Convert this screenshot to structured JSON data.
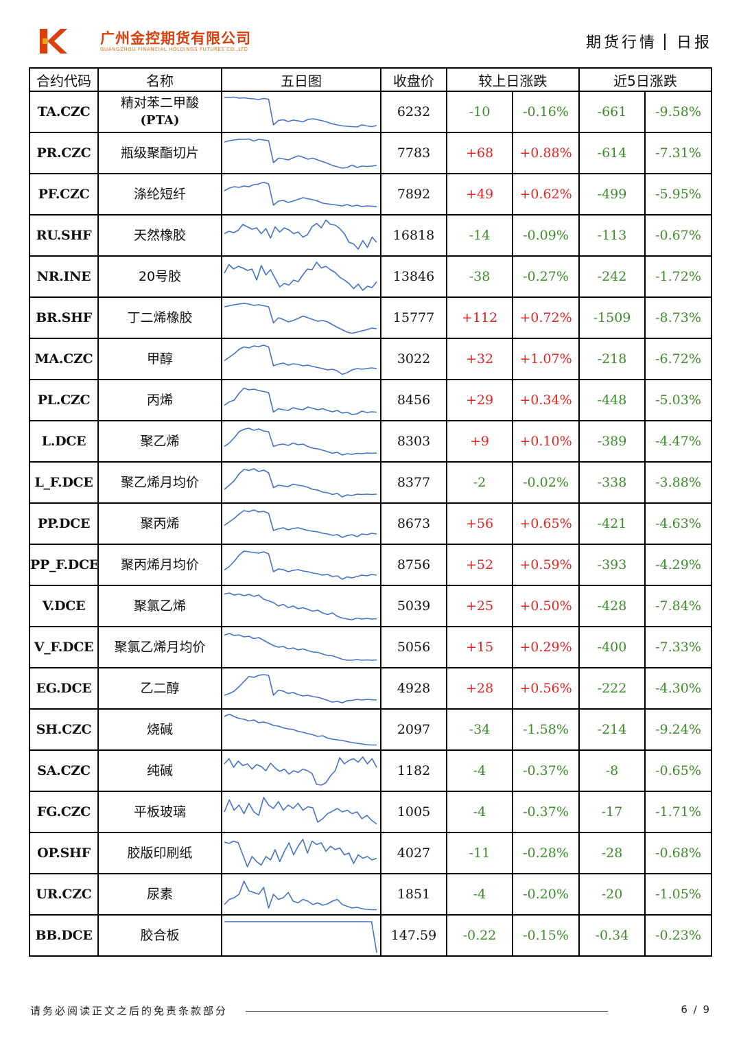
{
  "header": {
    "company_cn": "广州金控期货有限公司",
    "company_en": "GUANGZHOU FINANCIAL HOLDINGS FUTURES CO.,LTD",
    "report_type": "期货行情",
    "report_freq": "日报"
  },
  "colors": {
    "brand": "#d8400e",
    "up": "#e8231f",
    "down": "#3b8c2a",
    "sparkline": "#4472c4"
  },
  "table": {
    "headers": [
      "合约代码",
      "名称",
      "五日图",
      "收盘价",
      "较上日涨跌",
      "近5日涨跌"
    ],
    "rows": [
      {
        "code": "TA.CZC",
        "name": "精对苯二甲酸",
        "name_sub": "(PTA)",
        "close": "6232",
        "chg": "-10",
        "chg_pct": "-0.16%",
        "chg5": "-661",
        "chg5_pct": "-9.58%",
        "trend": [
          0.92,
          0.92,
          0.93,
          0.9,
          0.91,
          0.89,
          0.88,
          0.86,
          0.89,
          0.87,
          0.12,
          0.25,
          0.27,
          0.22,
          0.26,
          0.24,
          0.21,
          0.28,
          0.3,
          0.27,
          0.24,
          0.2,
          0.15,
          0.12,
          0.09,
          0.08,
          0.07,
          0.06,
          0.12,
          0.09,
          0.07,
          0.1
        ]
      },
      {
        "code": "PR.CZC",
        "name": "瓶级聚酯切片",
        "name_sub": "",
        "close": "7783",
        "chg": "+68",
        "chg_pct": "+0.88%",
        "chg5": "-614",
        "chg5_pct": "-7.31%",
        "trend": [
          0.82,
          0.86,
          0.88,
          0.9,
          0.9,
          0.91,
          0.85,
          0.9,
          0.88,
          0.86,
          0.22,
          0.35,
          0.33,
          0.3,
          0.36,
          0.42,
          0.38,
          0.32,
          0.35,
          0.3,
          0.25,
          0.2,
          0.14,
          0.1,
          0.06,
          0.08,
          0.15,
          0.08,
          0.12,
          0.11,
          0.12,
          0.14
        ]
      },
      {
        "code": "PF.CZC",
        "name": "涤纶短纤",
        "name_sub": "",
        "close": "7892",
        "chg": "+49",
        "chg_pct": "+0.62%",
        "chg5": "-499",
        "chg5_pct": "-5.95%",
        "trend": [
          0.6,
          0.68,
          0.72,
          0.7,
          0.74,
          0.72,
          0.78,
          0.8,
          0.85,
          0.8,
          0.18,
          0.3,
          0.32,
          0.26,
          0.3,
          0.35,
          0.4,
          0.37,
          0.34,
          0.3,
          0.24,
          0.22,
          0.2,
          0.18,
          0.16,
          0.2,
          0.15,
          0.18,
          0.14,
          0.16,
          0.15,
          0.14
        ]
      },
      {
        "code": "RU.SHF",
        "name": "天然橡胶",
        "name_sub": "",
        "close": "16818",
        "chg": "-14",
        "chg_pct": "-0.09%",
        "chg5": "-113",
        "chg5_pct": "-0.67%",
        "trend": [
          0.55,
          0.62,
          0.58,
          0.65,
          0.82,
          0.75,
          0.68,
          0.72,
          0.55,
          0.7,
          0.42,
          0.75,
          0.6,
          0.72,
          0.66,
          0.55,
          0.6,
          0.45,
          0.52,
          0.75,
          0.85,
          0.72,
          0.95,
          0.82,
          0.8,
          0.7,
          0.55,
          0.3,
          0.25,
          0.1,
          0.35,
          0.15,
          0.45,
          0.3
        ]
      },
      {
        "code": "NR.INE",
        "name": "20号胶",
        "name_sub": "",
        "close": "13846",
        "chg": "-38",
        "chg_pct": "-0.27%",
        "chg5": "-242",
        "chg5_pct": "-1.72%",
        "trend": [
          0.6,
          0.85,
          0.72,
          0.8,
          0.75,
          0.68,
          0.72,
          0.4,
          0.82,
          0.55,
          0.7,
          0.45,
          0.2,
          0.3,
          0.25,
          0.4,
          0.35,
          0.55,
          0.72,
          0.7,
          0.92,
          0.75,
          0.8,
          0.7,
          0.62,
          0.48,
          0.4,
          0.3,
          0.15,
          0.28,
          0.1,
          0.22,
          0.18,
          0.35
        ]
      },
      {
        "code": "BR.SHF",
        "name": "丁二烯橡胶",
        "name_sub": "",
        "close": "15777",
        "chg": "+112",
        "chg_pct": "+0.72%",
        "chg5": "-1509",
        "chg5_pct": "-8.73%",
        "trend": [
          0.82,
          0.85,
          0.88,
          0.9,
          0.92,
          0.9,
          0.86,
          0.88,
          0.85,
          0.82,
          0.35,
          0.5,
          0.45,
          0.38,
          0.42,
          0.48,
          0.55,
          0.5,
          0.45,
          0.4,
          0.42,
          0.38,
          0.3,
          0.22,
          0.15,
          0.08,
          0.05,
          0.08,
          0.12,
          0.15,
          0.2,
          0.18
        ]
      },
      {
        "code": "MA.CZC",
        "name": "甲醇",
        "name_sub": "",
        "close": "3022",
        "chg": "+32",
        "chg_pct": "+1.07%",
        "chg5": "-218",
        "chg5_pct": "-6.72%",
        "trend": [
          0.45,
          0.55,
          0.65,
          0.78,
          0.85,
          0.82,
          0.88,
          0.86,
          0.9,
          0.85,
          0.3,
          0.35,
          0.38,
          0.32,
          0.36,
          0.34,
          0.3,
          0.32,
          0.28,
          0.25,
          0.22,
          0.18,
          0.2,
          0.15,
          0.05,
          0.1,
          0.18,
          0.22,
          0.2,
          0.22,
          0.24,
          0.22
        ]
      },
      {
        "code": "PL.CZC",
        "name": "丙烯",
        "name_sub": "",
        "close": "8456",
        "chg": "+29",
        "chg_pct": "+0.34%",
        "chg5": "-448",
        "chg5_pct": "-5.03%",
        "trend": [
          0.35,
          0.45,
          0.5,
          0.7,
          0.85,
          0.8,
          0.82,
          0.78,
          0.75,
          0.72,
          0.15,
          0.25,
          0.22,
          0.2,
          0.28,
          0.24,
          0.22,
          0.3,
          0.26,
          0.22,
          0.25,
          0.2,
          0.16,
          0.2,
          0.12,
          0.15,
          0.08,
          0.1,
          0.18,
          0.14,
          0.16,
          0.15
        ]
      },
      {
        "code": "L.DCE",
        "name": "聚乙烯",
        "name_sub": "",
        "close": "8303",
        "chg": "+9",
        "chg_pct": "+0.10%",
        "chg5": "-389",
        "chg5_pct": "-4.47%",
        "trend": [
          0.35,
          0.45,
          0.6,
          0.78,
          0.85,
          0.88,
          0.82,
          0.86,
          0.8,
          0.78,
          0.35,
          0.4,
          0.42,
          0.38,
          0.45,
          0.4,
          0.42,
          0.35,
          0.3,
          0.28,
          0.24,
          0.2,
          0.15,
          0.18,
          0.1,
          0.14,
          0.12,
          0.15,
          0.14,
          0.16,
          0.15,
          0.16
        ]
      },
      {
        "code": "L_F.DCE",
        "name": "聚乙烯月均价",
        "name_sub": "",
        "close": "8377",
        "chg": "-2",
        "chg_pct": "-0.02%",
        "chg5": "-338",
        "chg5_pct": "-3.88%",
        "trend": [
          0.3,
          0.42,
          0.55,
          0.75,
          0.88,
          0.85,
          0.9,
          0.82,
          0.86,
          0.78,
          0.35,
          0.42,
          0.4,
          0.38,
          0.45,
          0.42,
          0.4,
          0.36,
          0.3,
          0.28,
          0.22,
          0.2,
          0.15,
          0.18,
          0.08,
          0.14,
          0.12,
          0.16,
          0.15,
          0.16,
          0.15,
          0.16
        ]
      },
      {
        "code": "PP.DCE",
        "name": "聚丙烯",
        "name_sub": "",
        "close": "8673",
        "chg": "+56",
        "chg_pct": "+0.65%",
        "chg5": "-421",
        "chg5_pct": "-4.63%",
        "trend": [
          0.45,
          0.55,
          0.65,
          0.78,
          0.88,
          0.85,
          0.9,
          0.84,
          0.86,
          0.8,
          0.3,
          0.35,
          0.38,
          0.32,
          0.36,
          0.38,
          0.34,
          0.3,
          0.28,
          0.26,
          0.22,
          0.2,
          0.16,
          0.18,
          0.1,
          0.15,
          0.18,
          0.12,
          0.2,
          0.18,
          0.22,
          0.2
        ]
      },
      {
        "code": "PP_F.DCE",
        "name": "聚丙烯月均价",
        "name_sub": "",
        "close": "8756",
        "chg": "+52",
        "chg_pct": "+0.59%",
        "chg5": "-393",
        "chg5_pct": "-4.29%",
        "trend": [
          0.35,
          0.45,
          0.6,
          0.78,
          0.9,
          0.88,
          0.86,
          0.84,
          0.88,
          0.82,
          0.3,
          0.38,
          0.36,
          0.3,
          0.34,
          0.36,
          0.32,
          0.3,
          0.26,
          0.24,
          0.2,
          0.22,
          0.16,
          0.18,
          0.08,
          0.15,
          0.12,
          0.16,
          0.2,
          0.18,
          0.22,
          0.2
        ]
      },
      {
        "code": "V.DCE",
        "name": "聚氯乙烯",
        "name_sub": "",
        "close": "5039",
        "chg": "+25",
        "chg_pct": "+0.50%",
        "chg5": "-428",
        "chg5_pct": "-7.84%",
        "trend": [
          0.85,
          0.88,
          0.82,
          0.85,
          0.8,
          0.84,
          0.78,
          0.82,
          0.7,
          0.65,
          0.6,
          0.5,
          0.55,
          0.45,
          0.5,
          0.42,
          0.45,
          0.4,
          0.35,
          0.38,
          0.3,
          0.25,
          0.3,
          0.2,
          0.15,
          0.12,
          0.1,
          0.15,
          0.12,
          0.14,
          0.12,
          0.13
        ]
      },
      {
        "code": "V_F.DCE",
        "name": "聚氯乙烯月均价",
        "name_sub": "",
        "close": "5056",
        "chg": "+15",
        "chg_pct": "+0.29%",
        "chg5": "-400",
        "chg5_pct": "-7.33%",
        "trend": [
          0.85,
          0.9,
          0.84,
          0.86,
          0.8,
          0.82,
          0.75,
          0.78,
          0.7,
          0.62,
          0.55,
          0.5,
          0.52,
          0.45,
          0.48,
          0.42,
          0.45,
          0.4,
          0.36,
          0.35,
          0.3,
          0.26,
          0.25,
          0.2,
          0.15,
          0.12,
          0.12,
          0.14,
          0.12,
          0.13,
          0.12,
          0.13
        ]
      },
      {
        "code": "EG.DCE",
        "name": "乙二醇",
        "name_sub": "",
        "close": "4928",
        "chg": "+28",
        "chg_pct": "+0.56%",
        "chg5": "-222",
        "chg5_pct": "-4.30%",
        "trend": [
          0.3,
          0.35,
          0.42,
          0.55,
          0.7,
          0.85,
          0.82,
          0.88,
          0.9,
          0.88,
          0.3,
          0.45,
          0.42,
          0.35,
          0.38,
          0.32,
          0.28,
          0.3,
          0.26,
          0.24,
          0.2,
          0.15,
          0.1,
          0.12,
          0.08,
          0.14,
          0.15,
          0.18,
          0.16,
          0.18,
          0.17,
          0.16
        ]
      },
      {
        "code": "SH.CZC",
        "name": "烧碱",
        "name_sub": "",
        "close": "2097",
        "chg": "-34",
        "chg_pct": "-1.58%",
        "chg5": "-214",
        "chg5_pct": "-9.24%",
        "trend": [
          0.88,
          0.95,
          0.88,
          0.82,
          0.8,
          0.75,
          0.78,
          0.7,
          0.72,
          0.68,
          0.62,
          0.6,
          0.55,
          0.52,
          0.5,
          0.45,
          0.42,
          0.38,
          0.35,
          0.3,
          0.32,
          0.25,
          0.22,
          0.2,
          0.18,
          0.15,
          0.12,
          0.1,
          0.08,
          0.06,
          0.05,
          0.05
        ]
      },
      {
        "code": "SA.CZC",
        "name": "纯碱",
        "name_sub": "",
        "close": "1182",
        "chg": "-4",
        "chg_pct": "-0.37%",
        "chg5": "-8",
        "chg5_pct": "-0.65%",
        "trend": [
          0.7,
          0.85,
          0.6,
          0.78,
          0.65,
          0.7,
          0.55,
          0.68,
          0.62,
          0.5,
          0.72,
          0.58,
          0.48,
          0.55,
          0.4,
          0.5,
          0.45,
          0.55,
          0.5,
          0.42,
          0.1,
          0.08,
          0.15,
          0.35,
          0.5,
          0.88,
          0.7,
          0.8,
          0.85,
          0.75,
          0.9,
          0.7,
          0.85,
          0.6
        ]
      },
      {
        "code": "FG.CZC",
        "name": "平板玻璃",
        "name_sub": "",
        "close": "1005",
        "chg": "-4",
        "chg_pct": "-0.37%",
        "chg5": "-17",
        "chg5_pct": "-1.71%",
        "trend": [
          0.5,
          0.85,
          0.55,
          0.7,
          0.45,
          0.75,
          0.5,
          0.4,
          0.92,
          0.7,
          0.6,
          0.8,
          0.55,
          0.7,
          0.6,
          0.75,
          0.55,
          0.65,
          0.62,
          0.2,
          0.3,
          0.45,
          0.52,
          0.6,
          0.5,
          0.55,
          0.45,
          0.5,
          0.3,
          0.4,
          0.25,
          0.15
        ]
      },
      {
        "code": "OP.SHF",
        "name": "胶版印刷纸",
        "name_sub": "",
        "close": "4027",
        "chg": "-11",
        "chg_pct": "-0.28%",
        "chg5": "-28",
        "chg5_pct": "-0.68%",
        "trend": [
          0.82,
          0.78,
          0.85,
          0.8,
          0.45,
          0.1,
          0.4,
          0.25,
          0.15,
          0.4,
          0.3,
          0.6,
          0.25,
          0.55,
          0.8,
          0.45,
          0.7,
          0.9,
          0.5,
          0.85,
          0.75,
          0.8,
          0.55,
          0.7,
          0.6,
          0.65,
          0.45,
          0.5,
          0.2,
          0.45,
          0.35,
          0.4,
          0.3,
          0.35
        ]
      },
      {
        "code": "UR.CZC",
        "name": "尿素",
        "name_sub": "",
        "close": "1851",
        "chg": "-4",
        "chg_pct": "-0.20%",
        "chg5": "-20",
        "chg5_pct": "-1.05%",
        "trend": [
          0.2,
          0.35,
          0.4,
          0.5,
          0.88,
          0.6,
          0.55,
          0.5,
          0.7,
          0.1,
          0.5,
          0.35,
          0.4,
          0.55,
          0.3,
          0.25,
          0.35,
          0.3,
          0.2,
          0.25,
          0.18,
          0.22,
          0.3,
          0.35,
          0.2,
          0.15,
          0.1,
          0.12,
          0.08,
          0.06,
          0.05,
          0.05
        ]
      },
      {
        "code": "BB.DCE",
        "name": "胶合板",
        "name_sub": "",
        "close": "147.59",
        "chg": "-0.22",
        "chg_pct": "-0.15%",
        "chg5": "-0.34",
        "chg5_pct": "-0.23%",
        "trend": [
          0.9,
          0.9,
          0.9,
          0.9,
          0.9,
          0.9,
          0.9,
          0.9,
          0.9,
          0.9,
          0.9,
          0.9,
          0.9,
          0.9,
          0.9,
          0.9,
          0.9,
          0.9,
          0.9,
          0.9,
          0.9,
          0.9,
          0.9,
          0.9,
          0.9,
          0.9,
          0.9,
          0.9,
          0.9,
          0.9,
          0.0
        ]
      }
    ]
  },
  "footer": {
    "disclaimer": "请务必阅读正文之后的免责条款部分",
    "page": "6 / 9"
  }
}
